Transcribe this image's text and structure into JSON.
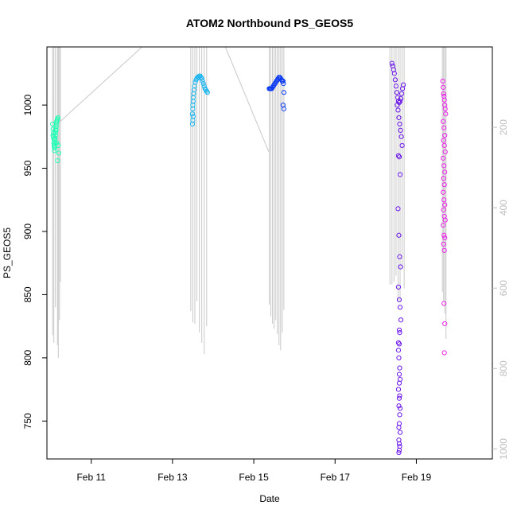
{
  "chart_data": {
    "type": "scatter",
    "title": "ATOM2 Northbound PS_GEOS5",
    "xlabel": "Date",
    "ylabel": "PS_GEOS5",
    "x_ticks": [
      "Feb 11",
      "Feb 13",
      "Feb 15",
      "Feb 17",
      "Feb 19"
    ],
    "x_tick_days": [
      11,
      13,
      15,
      17,
      19
    ],
    "xlim": [
      9.91,
      20.87
    ],
    "ylim": [
      720,
      1046
    ],
    "y_ticks": [
      750,
      800,
      850,
      900,
      950,
      1000
    ],
    "y2_ticks": [
      200,
      400,
      600,
      800,
      1000
    ],
    "y2_axis": {
      "label_color": "#bdbdbd",
      "ylim_inverted": [
        1025,
        0
      ]
    },
    "grid": false,
    "legend": "none",
    "colors": {
      "track": "#c8c8c8",
      "axis": "#000000",
      "right_axis": "#bdbdbd"
    },
    "series": [
      {
        "color": "#1dffb4",
        "x": [
          10.05,
          10.06,
          10.07,
          10.07,
          10.08,
          10.08,
          10.09,
          10.09,
          10.1,
          10.1,
          10.11,
          10.11,
          10.12,
          10.12,
          10.13,
          10.13,
          10.14,
          10.14,
          10.15,
          10.16,
          10.17,
          10.18,
          10.19,
          10.2,
          10.06,
          10.09,
          10.12,
          10.15,
          10.17
        ],
        "y": [
          985,
          981,
          978,
          975,
          973,
          970,
          968,
          967,
          966,
          970,
          972,
          974,
          976,
          978,
          980,
          981,
          983,
          985,
          987,
          988,
          989,
          990,
          968,
          962,
          976,
          964,
          980,
          970,
          956
        ]
      },
      {
        "color": "#18b4ee",
        "x": [
          13.49,
          13.5,
          13.5,
          13.51,
          13.51,
          13.52,
          13.53,
          13.54,
          13.56,
          13.58,
          13.6,
          13.62,
          13.64,
          13.66,
          13.68,
          13.7,
          13.72,
          13.74,
          13.76,
          13.78,
          13.8,
          13.82,
          13.84,
          13.86,
          13.49,
          13.5,
          13.51
        ],
        "y": [
          993,
          997,
          1000,
          1003,
          1006,
          1009,
          1012,
          1015,
          1018,
          1020,
          1021,
          1022,
          1022,
          1023,
          1023,
          1022,
          1021,
          1019,
          1017,
          1015,
          1013,
          1012,
          1011,
          1010,
          985,
          988,
          991
        ]
      },
      {
        "color": "#0a39f2",
        "x": [
          15.38,
          15.4,
          15.42,
          15.44,
          15.46,
          15.48,
          15.5,
          15.52,
          15.54,
          15.56,
          15.58,
          15.6,
          15.62,
          15.64,
          15.66,
          15.68,
          15.7,
          15.72,
          15.73,
          15.74,
          15.72,
          15.74
        ],
        "y": [
          1013,
          1013,
          1013,
          1013,
          1014,
          1015,
          1016,
          1017,
          1018,
          1019,
          1020,
          1021,
          1022,
          1022,
          1021,
          1020,
          1019,
          1019,
          1017,
          1010,
          1000,
          997
        ]
      },
      {
        "color": "#6b16ea",
        "x": [
          18.4,
          18.42,
          18.44,
          18.46,
          18.48,
          18.5,
          18.52,
          18.54,
          18.56,
          18.58,
          18.6,
          18.62,
          18.64,
          18.66,
          18.68,
          18.53,
          18.55,
          18.57,
          18.59,
          18.61,
          18.63,
          18.65,
          18.56,
          18.58,
          18.6,
          18.55,
          18.57,
          18.59,
          18.61,
          18.56,
          18.58,
          18.6,
          18.62,
          18.59,
          18.58,
          18.56,
          18.57,
          18.59,
          18.58,
          18.6,
          18.56,
          18.58,
          18.57,
          18.59,
          18.58,
          18.6,
          18.57,
          18.59,
          18.58,
          18.57,
          18.59,
          18.58,
          18.6,
          18.57,
          18.58,
          18.56,
          18.58
        ],
        "y": [
          1033,
          1031,
          1028,
          1025,
          1020,
          1015,
          1010,
          1006,
          1003,
          1002,
          1003,
          1005,
          1009,
          1013,
          1016,
          1000,
          996,
          990,
          985,
          980,
          975,
          968,
          960,
          959,
          945,
          918,
          897,
          880,
          872,
          856,
          846,
          840,
          830,
          820,
          811,
          806,
          800,
          792,
          787,
          783,
          775,
          768,
          762,
          755,
          748,
          741,
          735,
          730,
          727,
          725,
          770,
          780,
          760,
          745,
          732,
          812,
          822
        ]
      },
      {
        "color": "#ee1fea",
        "x": [
          19.65,
          19.66,
          19.67,
          19.68,
          19.69,
          19.7,
          19.71,
          19.72,
          19.66,
          19.68,
          19.7,
          19.67,
          19.69,
          19.71,
          19.66,
          19.68,
          19.7,
          19.67,
          19.69,
          19.66,
          19.68,
          19.7,
          19.67,
          19.69,
          19.71,
          19.66,
          19.68,
          19.7,
          19.67,
          19.69,
          19.68,
          19.7,
          19.69
        ],
        "y": [
          1019,
          1014,
          1009,
          1007,
          1004,
          1000,
          997,
          993,
          987,
          982,
          976,
          972,
          968,
          963,
          958,
          952,
          947,
          942,
          937,
          931,
          925,
          921,
          917,
          912,
          909,
          905,
          897,
          895,
          890,
          885,
          843,
          827,
          804
        ]
      }
    ],
    "tracks": [
      {
        "x": 10.2,
        "y": 986,
        "to_x": 12.25,
        "to_y": 1046
      },
      {
        "x": 14.3,
        "y": 1046,
        "to_x": 15.37,
        "to_y": 963
      }
    ],
    "curtains": [
      {
        "x": [
          10.05,
          10.08,
          10.12,
          10.17,
          10.19,
          10.22,
          10.24
        ],
        "bottom": [
          818,
          812,
          840,
          810,
          800,
          830,
          860
        ],
        "top": 1046
      },
      {
        "x": [
          13.45,
          13.5,
          13.55,
          13.6,
          13.66,
          13.72,
          13.78,
          13.84
        ],
        "bottom": [
          837,
          828,
          827,
          845,
          820,
          812,
          803,
          825
        ],
        "top": 1046
      },
      {
        "x": [
          15.38,
          15.42,
          15.46,
          15.5,
          15.54,
          15.58,
          15.62,
          15.66,
          15.7,
          15.74
        ],
        "bottom": [
          842,
          833,
          827,
          823,
          830,
          819,
          810,
          806,
          820,
          838
        ],
        "top": 1046
      },
      {
        "x": [
          18.35,
          18.4,
          18.45,
          18.5,
          18.55,
          18.6,
          18.65,
          18.7
        ],
        "bottom": [
          858,
          858,
          860,
          865,
          845,
          845,
          870,
          855
        ],
        "top": 1046
      },
      {
        "x": [
          19.64,
          19.67,
          19.7,
          19.73
        ],
        "bottom": [
          852,
          845,
          835,
          815
        ],
        "top": 1046
      }
    ]
  }
}
